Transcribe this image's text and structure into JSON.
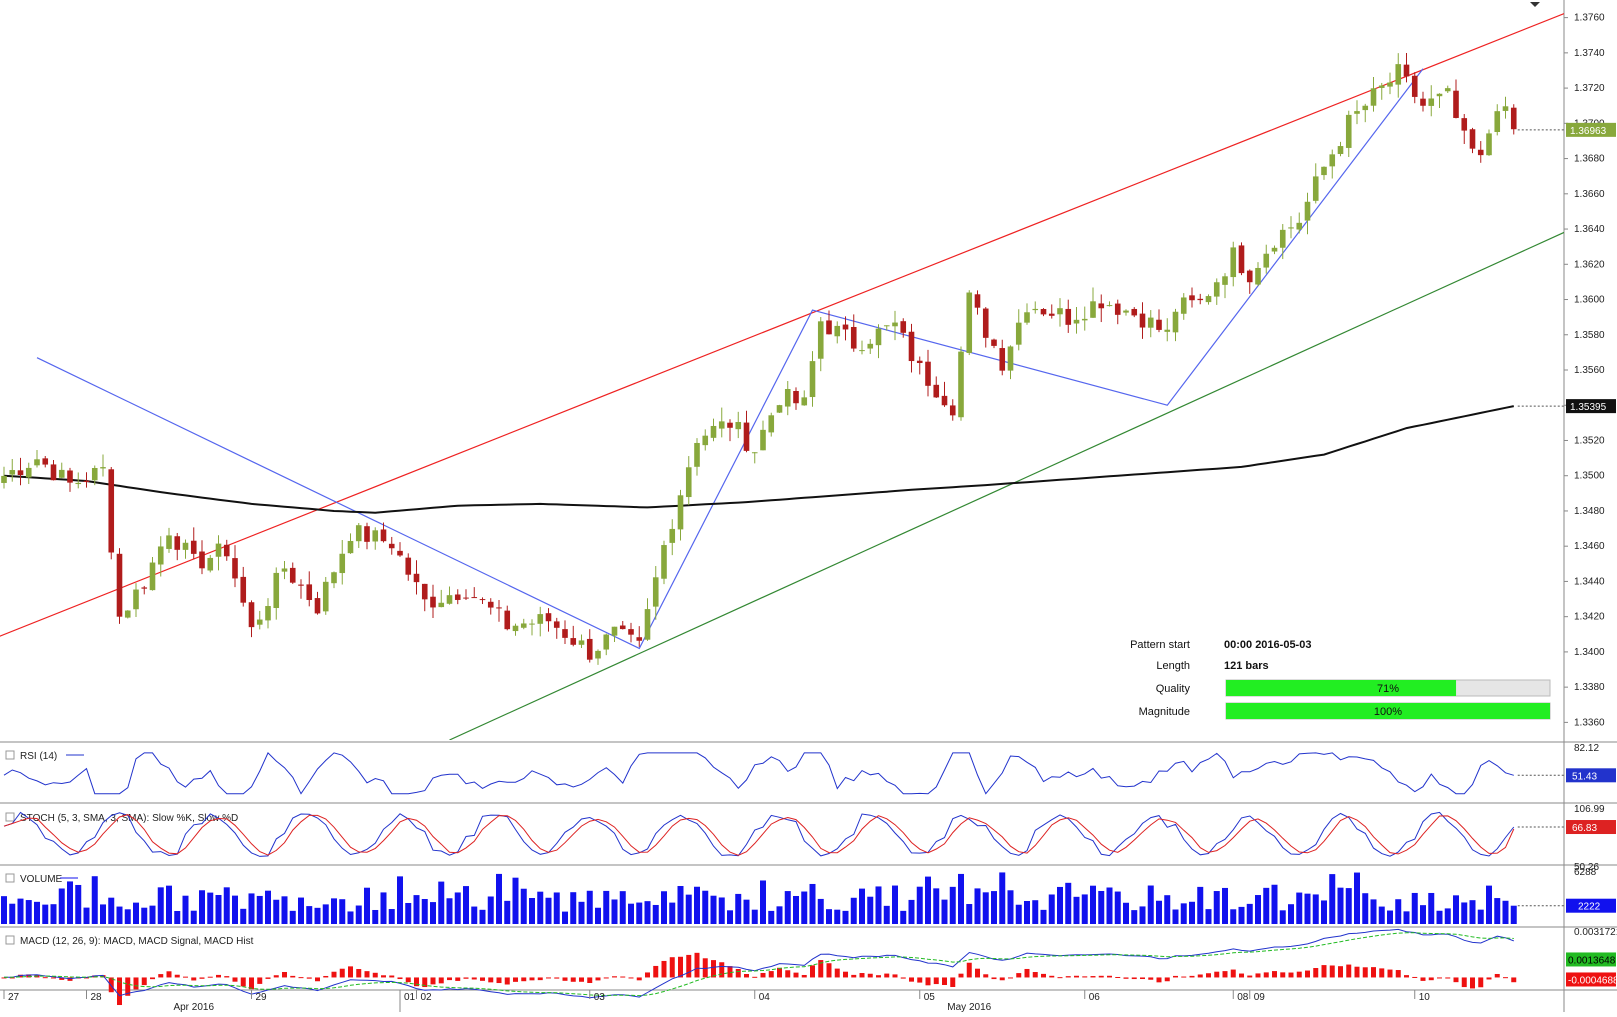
{
  "chart_data": [
    {
      "type": "candlestick",
      "panel": "price",
      "y_ticks": [
        "1.3360",
        "1.3380",
        "1.3400",
        "1.3420",
        "1.3440",
        "1.3460",
        "1.3480",
        "1.3500",
        "1.3520",
        "1.3540",
        "1.3560",
        "1.3580",
        "1.3600",
        "1.3620",
        "1.3640",
        "1.3660",
        "1.3680",
        "1.3700",
        "1.3720",
        "1.3740",
        "1.3760"
      ],
      "ylim": [
        1.335,
        1.377
      ],
      "last_price": "1.36963",
      "moving_average_last": "1.35395",
      "x_ticks": [
        {
          "label": "27",
          "bar": 0
        },
        {
          "label": "28",
          "bar": 10
        },
        {
          "label": "29",
          "bar": 30
        },
        {
          "label": "01",
          "bar": 48
        },
        {
          "label": "02",
          "bar": 50
        },
        {
          "label": "03",
          "bar": 71
        },
        {
          "label": "04",
          "bar": 91
        },
        {
          "label": "05",
          "bar": 111
        },
        {
          "label": "06",
          "bar": 131
        },
        {
          "label": "08",
          "bar": 149
        },
        {
          "label": "09",
          "bar": 151
        },
        {
          "label": "10",
          "bar": 171
        }
      ],
      "month_labels": [
        {
          "label": "Apr 2016",
          "bar": 23
        },
        {
          "label": "May 2016",
          "bar": 117
        }
      ],
      "anchors": [
        {
          "bar": 0,
          "price": 1.35
        },
        {
          "bar": 4,
          "price": 1.351
        },
        {
          "bar": 8,
          "price": 1.3495
        },
        {
          "bar": 12,
          "price": 1.3503
        },
        {
          "bar": 14,
          "price": 1.342
        },
        {
          "bar": 17,
          "price": 1.344
        },
        {
          "bar": 20,
          "price": 1.347
        },
        {
          "bar": 23,
          "price": 1.345
        },
        {
          "bar": 27,
          "price": 1.3458
        },
        {
          "bar": 30,
          "price": 1.3412
        },
        {
          "bar": 34,
          "price": 1.3448
        },
        {
          "bar": 38,
          "price": 1.3426
        },
        {
          "bar": 42,
          "price": 1.3468
        },
        {
          "bar": 47,
          "price": 1.3462
        },
        {
          "bar": 51,
          "price": 1.3428
        },
        {
          "bar": 56,
          "price": 1.3436
        },
        {
          "bar": 61,
          "price": 1.3415
        },
        {
          "bar": 66,
          "price": 1.3418
        },
        {
          "bar": 71,
          "price": 1.34
        },
        {
          "bar": 74,
          "price": 1.341
        },
        {
          "bar": 77,
          "price": 1.3402
        },
        {
          "bar": 80,
          "price": 1.346
        },
        {
          "bar": 84,
          "price": 1.3522
        },
        {
          "bar": 88,
          "price": 1.353
        },
        {
          "bar": 91,
          "price": 1.3515
        },
        {
          "bar": 94,
          "price": 1.3545
        },
        {
          "bar": 97,
          "price": 1.354
        },
        {
          "bar": 99,
          "price": 1.3588
        },
        {
          "bar": 103,
          "price": 1.3575
        },
        {
          "bar": 108,
          "price": 1.3585
        },
        {
          "bar": 111,
          "price": 1.356
        },
        {
          "bar": 115,
          "price": 1.354
        },
        {
          "bar": 117,
          "price": 1.36
        },
        {
          "bar": 121,
          "price": 1.3565
        },
        {
          "bar": 124,
          "price": 1.3598
        },
        {
          "bar": 129,
          "price": 1.359
        },
        {
          "bar": 133,
          "price": 1.36
        },
        {
          "bar": 138,
          "price": 1.359
        },
        {
          "bar": 141,
          "price": 1.358
        },
        {
          "bar": 142,
          "price": 1.3595
        },
        {
          "bar": 145,
          "price": 1.3598
        },
        {
          "bar": 149,
          "price": 1.3625
        },
        {
          "bar": 151,
          "price": 1.3615
        },
        {
          "bar": 154,
          "price": 1.3635
        },
        {
          "bar": 157,
          "price": 1.3645
        },
        {
          "bar": 160,
          "price": 1.3675
        },
        {
          "bar": 163,
          "price": 1.37
        },
        {
          "bar": 166,
          "price": 1.3715
        },
        {
          "bar": 169,
          "price": 1.3728
        },
        {
          "bar": 172,
          "price": 1.371
        },
        {
          "bar": 175,
          "price": 1.3715
        },
        {
          "bar": 177,
          "price": 1.369
        },
        {
          "bar": 179,
          "price": 1.3678
        },
        {
          "bar": 181,
          "price": 1.3712
        },
        {
          "bar": 183,
          "price": 1.3696
        }
      ],
      "ma_anchors": [
        {
          "bar": 0,
          "price": 1.35
        },
        {
          "bar": 10,
          "price": 1.3497
        },
        {
          "bar": 20,
          "price": 1.349
        },
        {
          "bar": 30,
          "price": 1.3484
        },
        {
          "bar": 40,
          "price": 1.348
        },
        {
          "bar": 45,
          "price": 1.3479
        },
        {
          "bar": 55,
          "price": 1.3483
        },
        {
          "bar": 65,
          "price": 1.3484
        },
        {
          "bar": 78,
          "price": 1.3482
        },
        {
          "bar": 90,
          "price": 1.3485
        },
        {
          "bar": 110,
          "price": 1.3492
        },
        {
          "bar": 120,
          "price": 1.3495
        },
        {
          "bar": 135,
          "price": 1.35
        },
        {
          "bar": 150,
          "price": 1.3505
        },
        {
          "bar": 160,
          "price": 1.3512
        },
        {
          "bar": 170,
          "price": 1.3527
        },
        {
          "bar": 183,
          "price": 1.35395
        }
      ],
      "pattern_lines": [
        {
          "name": "upper-channel",
          "color": "#ee2222",
          "points": [
            {
              "bar": -1,
              "price": 1.3408
            },
            {
              "bar": 190,
              "price": 1.3764
            }
          ]
        },
        {
          "name": "lower-channel",
          "color": "#338833",
          "points": [
            {
              "bar": 54,
              "price": 1.335
            },
            {
              "bar": 190,
              "price": 1.364
            }
          ]
        },
        {
          "name": "zigzag",
          "color": "#5566ee",
          "points": [
            {
              "bar": 4,
              "price": 1.3567
            },
            {
              "bar": 77,
              "price": 1.3402
            },
            {
              "bar": 98,
              "price": 1.3594
            },
            {
              "bar": 141,
              "price": 1.354
            },
            {
              "bar": 172,
              "price": 1.3731
            }
          ]
        }
      ],
      "pattern_info": {
        "pattern_start_label": "Pattern start",
        "pattern_start_value": "00:00 2016-05-03",
        "length_label": "Length",
        "length_value": "121 bars",
        "quality_label": "Quality",
        "quality_value": "71%",
        "quality_fraction": 0.71,
        "magnitude_label": "Magnitude",
        "magnitude_value": "100%",
        "magnitude_fraction": 1.0
      },
      "colors": {
        "up": "#88a83c",
        "down": "#b01c1c",
        "ma": "#111111",
        "last_price_badge": "#88a83c"
      }
    },
    {
      "type": "line",
      "panel": "rsi",
      "title": "RSI (14)",
      "ylim": [
        20,
        90
      ],
      "top_tick": "82.12",
      "last_value": "51.43",
      "color": "#2233cc"
    },
    {
      "type": "line",
      "panel": "stochastic",
      "title": "STOCH (5, 3, SMA, 3, SMA): Slow %K, Slow %D",
      "ylim": [
        -5,
        110
      ],
      "top_tick": "106.99",
      "mid_tick": "50.26",
      "last_value": "66.83",
      "k_color": "#2233cc",
      "d_color": "#dd2222"
    },
    {
      "type": "bar",
      "panel": "volume",
      "title": "VOLUME",
      "ylim": [
        0,
        6800
      ],
      "top_tick": "6288",
      "last_value": "2222",
      "color": "#1111ee"
    },
    {
      "type": "line",
      "panel": "macd",
      "title": "MACD (12, 26, 9): MACD, MACD Signal, MACD Hist",
      "ylim": [
        -0.0008,
        0.0036
      ],
      "top_tick": "0.0031721",
      "macd_last": "0.0013648",
      "hist_last": "-0.0004688",
      "macd_color": "#2233cc",
      "signal_color": "#22bb22",
      "hist_color": "#ee1111"
    }
  ]
}
